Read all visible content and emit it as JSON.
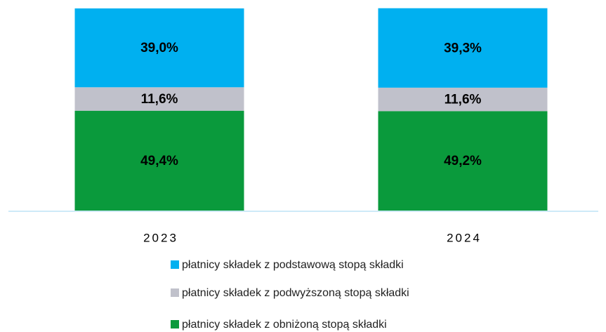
{
  "chart_data": {
    "type": "stacked_bar",
    "categories": [
      "2023",
      "2024"
    ],
    "series": [
      {
        "name": "płatnicy składek z podstawową stopą składki",
        "color": "#00b0f0",
        "values": [
          39.0,
          39.3
        ],
        "value_labels": [
          "39,0%",
          "39,3%"
        ]
      },
      {
        "name": "płatnicy składek z podwyższoną stopą składki",
        "color": "#c0c1cb",
        "values": [
          11.6,
          11.6
        ],
        "value_labels": [
          "11,6%",
          "11,6%"
        ]
      },
      {
        "name": "płatnicy składek z obniżoną stopą składki",
        "color": "#0a9a3c",
        "values": [
          49.4,
          49.2
        ],
        "value_labels": [
          "49,4%",
          "49,2%"
        ]
      }
    ],
    "ylim": [
      0,
      100
    ]
  }
}
